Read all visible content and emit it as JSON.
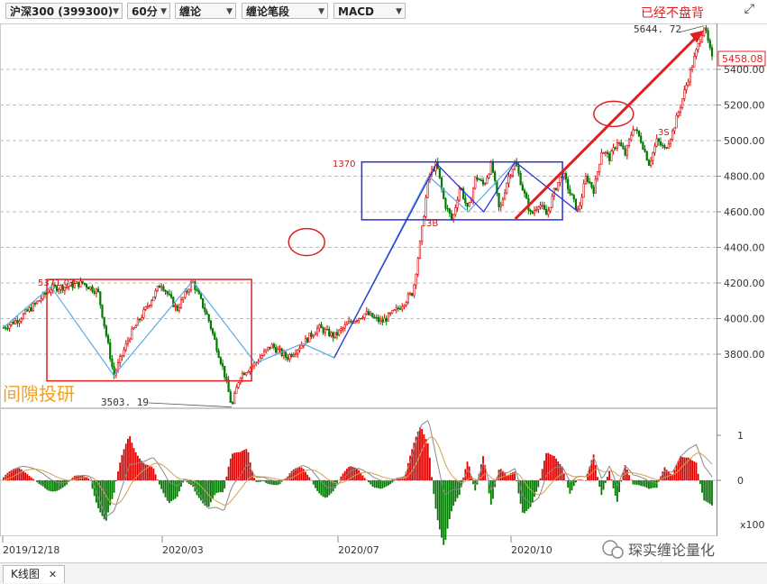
{
  "toolbar": {
    "symbol": "沪深300 (399300)",
    "period": "60分",
    "indicator_main": "缠论",
    "indicator_sub": "缠论笔段",
    "indicator_bottom": "MACD",
    "expand_icon": "expand-icon"
  },
  "annotations": {
    "headline": "已经不盘背",
    "high_label": "5644. 72",
    "last_price": "5458.08",
    "low_label": "3503. 19",
    "label_1370": "1370",
    "label_3b": "3B",
    "label_3s": "3S",
    "label_left_top": "5371.03",
    "watermark_left": "间隙投研",
    "watermark_right": "琛实缠论量化",
    "macd_scale": "x100"
  },
  "colors": {
    "up": "#e00000",
    "down": "#007a00",
    "stroke_line": "#5aa9e6",
    "segment_line": "#2b2bd4",
    "box_red": "#e02020",
    "box_blue": "#3030d0",
    "arrow": "#e02020",
    "dif": "#888888",
    "dea": "#d4a050"
  },
  "chart_data": {
    "type": "candlestick",
    "title": "沪深300 (399300) 60分",
    "ylim": [
      3500,
      5700
    ],
    "y_ticks": [
      "5400.00",
      "5200.00",
      "5000.00",
      "4800.00",
      "4600.00",
      "4400.00",
      "4200.00",
      "4000.00",
      "3800.00"
    ],
    "x_ticks": [
      "2019/12/18",
      "2020/03",
      "2020/07",
      "2020/10"
    ],
    "price_path": [
      [
        0,
        3950
      ],
      [
        4,
        4000
      ],
      [
        8,
        4080
      ],
      [
        12,
        4170
      ],
      [
        16,
        4180
      ],
      [
        20,
        4200
      ],
      [
        24,
        4150
      ],
      [
        28,
        3680
      ],
      [
        32,
        3900
      ],
      [
        36,
        4050
      ],
      [
        40,
        4200
      ],
      [
        44,
        4050
      ],
      [
        48,
        4210
      ],
      [
        52,
        4000
      ],
      [
        56,
        3700
      ],
      [
        58,
        3503
      ],
      [
        60,
        3680
      ],
      [
        64,
        3750
      ],
      [
        68,
        3850
      ],
      [
        72,
        3780
      ],
      [
        76,
        3860
      ],
      [
        80,
        3950
      ],
      [
        84,
        3900
      ],
      [
        88,
        3980
      ],
      [
        92,
        4030
      ],
      [
        96,
        3980
      ],
      [
        100,
        4050
      ],
      [
        104,
        4150
      ],
      [
        106,
        4450
      ],
      [
        108,
        4800
      ],
      [
        110,
        4870
      ],
      [
        112,
        4650
      ],
      [
        114,
        4550
      ],
      [
        116,
        4750
      ],
      [
        118,
        4600
      ],
      [
        120,
        4800
      ],
      [
        122,
        4750
      ],
      [
        124,
        4870
      ],
      [
        126,
        4600
      ],
      [
        128,
        4780
      ],
      [
        130,
        4880
      ],
      [
        132,
        4720
      ],
      [
        134,
        4580
      ],
      [
        136,
        4650
      ],
      [
        138,
        4580
      ],
      [
        140,
        4720
      ],
      [
        142,
        4820
      ],
      [
        144,
        4700
      ],
      [
        146,
        4600
      ],
      [
        148,
        4800
      ],
      [
        150,
        4720
      ],
      [
        152,
        4950
      ],
      [
        154,
        4900
      ],
      [
        156,
        5000
      ],
      [
        158,
        4920
      ],
      [
        160,
        5080
      ],
      [
        162,
        5000
      ],
      [
        164,
        4870
      ],
      [
        166,
        5000
      ],
      [
        168,
        4950
      ],
      [
        170,
        5050
      ],
      [
        172,
        5200
      ],
      [
        174,
        5350
      ],
      [
        176,
        5500
      ],
      [
        178,
        5644.72
      ],
      [
        180,
        5458.08
      ]
    ],
    "macd_range": [
      -1,
      1.5
    ],
    "macd_ticks": [
      "1",
      "0"
    ]
  }
}
